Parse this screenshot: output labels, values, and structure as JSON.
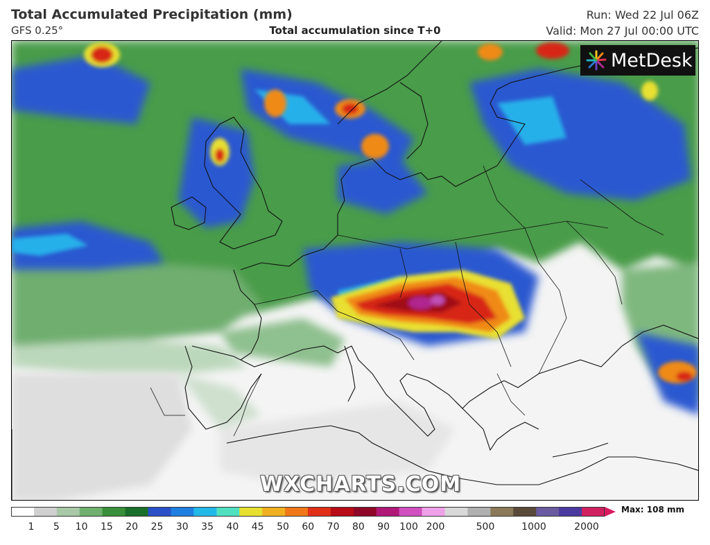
{
  "header": {
    "title": "Total Accumulated Precipitation (mm)",
    "model": "GFS 0.25°",
    "subtitle": "Total accumulation since T+0",
    "run": "Run: Wed 22 Jul 06Z",
    "valid": "Valid: Mon 27 Jul 00:00 UTC"
  },
  "logo": {
    "text": "MetDesk",
    "icon": "metdesk-burst-icon"
  },
  "watermark": "WXCHARTS.COM",
  "legend": {
    "max_label": "Max: 108 mm",
    "ticks": [
      "1",
      "5",
      "10",
      "15",
      "20",
      "25",
      "30",
      "35",
      "40",
      "45",
      "50",
      "60",
      "70",
      "80",
      "90",
      "100",
      "200",
      "500",
      "1000",
      "2000"
    ],
    "colors": [
      "#ffffff",
      "#d0d0d0",
      "#a8c8a8",
      "#6fb06f",
      "#3a8f3a",
      "#1a6f2a",
      "#2a50c8",
      "#1f7fe0",
      "#22b8e8",
      "#50e0c0",
      "#e8e030",
      "#f0b020",
      "#f07818",
      "#e03018",
      "#b80c18",
      "#900828",
      "#b01878",
      "#d050c0",
      "#f0a0e8",
      "#d8d8d8",
      "#b0b0b0",
      "#8a7a5a",
      "#5a4a3a",
      "#6a5aa0",
      "#4a3aa0",
      "#d02060"
    ],
    "arrow_color": "#d81b60"
  },
  "map": {
    "region": "Europe",
    "peak_area": "Alps",
    "precip_colors": {
      "none": "#ffffff",
      "trace": "#dcdcdc",
      "light_green": "#8fc08f",
      "green": "#3e963e",
      "dark_green": "#1f6f2f",
      "blue": "#2a55d0",
      "light_blue": "#28b0ea",
      "yellow": "#e8e030",
      "orange": "#f08a18",
      "red": "#d82818",
      "dark_red": "#a00818",
      "magenta": "#b02890"
    }
  }
}
